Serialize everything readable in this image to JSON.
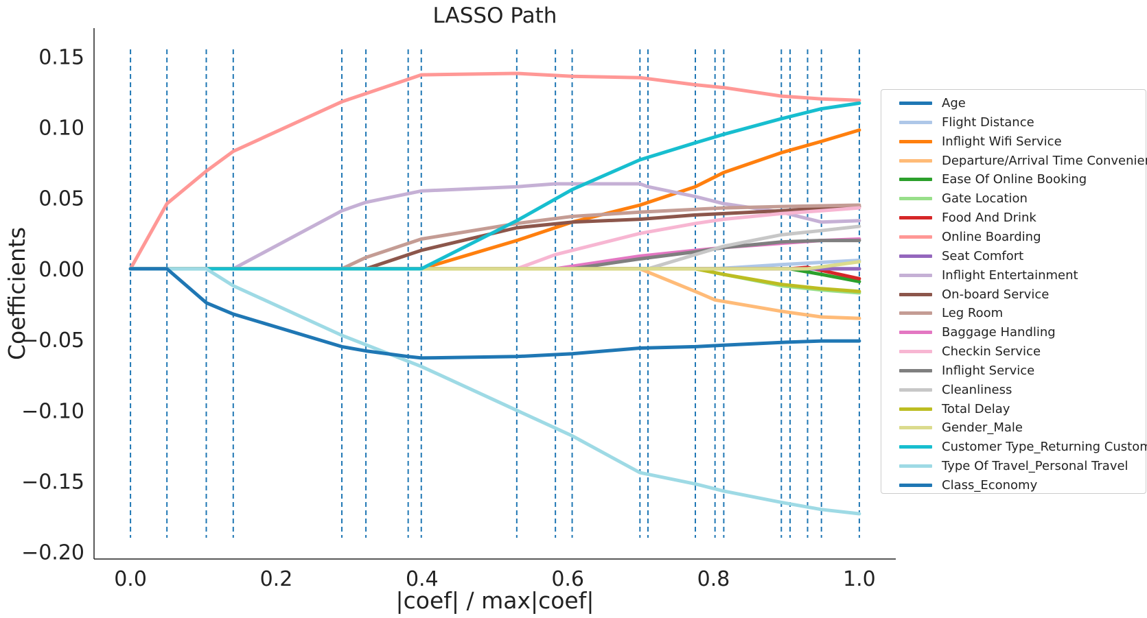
{
  "chart_data": {
    "type": "line",
    "title": "LASSO Path",
    "xlabel": "|coef| / max|coef|",
    "ylabel": "Coefficients",
    "xlim": [
      -0.05,
      1.05
    ],
    "ylim": [
      -0.205,
      0.17
    ],
    "xticks": [
      0.0,
      0.2,
      0.4,
      0.6,
      0.8,
      1.0
    ],
    "xtick_labels": [
      "0.0",
      "0.2",
      "0.4",
      "0.6",
      "0.8",
      "1.0"
    ],
    "yticks": [
      0.15,
      0.1,
      0.05,
      0.0,
      -0.05,
      -0.1,
      -0.15,
      -0.2
    ],
    "ytick_labels": [
      "0.15",
      "0.10",
      "0.05",
      "0.00",
      "−0.05",
      "−0.10",
      "−0.15",
      "−0.20"
    ],
    "grid": false,
    "legend_placement": "right outside",
    "knots": [
      0.0,
      0.05,
      0.104,
      0.141,
      0.29,
      0.323,
      0.381,
      0.399,
      0.53,
      0.583,
      0.606,
      0.699,
      0.71,
      0.775,
      0.802,
      0.814,
      0.893,
      0.905,
      0.929,
      0.948,
      1.0
    ],
    "knot_line_style": "dashed",
    "knot_line_range": [
      -0.19,
      0.155
    ],
    "knot_line_color": "#1f77b4",
    "series": [
      {
        "name": "Age",
        "color": "#1f77b4",
        "x": [
          0,
          1
        ],
        "y": [
          0,
          0
        ]
      },
      {
        "name": "Flight Distance",
        "color": "#aec7e8",
        "x": [
          0,
          0.802,
          0.893,
          1.0
        ],
        "y": [
          0,
          0,
          0.003,
          0.006
        ]
      },
      {
        "name": "Inflight Wifi Service",
        "color": "#ff7f0e",
        "x": [
          0,
          0.399,
          0.53,
          0.606,
          0.699,
          0.775,
          0.814,
          0.893,
          0.948,
          1.0
        ],
        "y": [
          0,
          0,
          0.02,
          0.033,
          0.045,
          0.058,
          0.068,
          0.082,
          0.09,
          0.098
        ]
      },
      {
        "name": "Departure/Arrival Time Convenience",
        "color": "#ffbb78",
        "x": [
          0,
          0.699,
          0.775,
          0.802,
          0.893,
          0.948,
          1.0
        ],
        "y": [
          0,
          0,
          -0.016,
          -0.022,
          -0.03,
          -0.034,
          -0.035
        ]
      },
      {
        "name": "Ease Of Online Booking",
        "color": "#2ca02c",
        "x": [
          0,
          0.905,
          0.948,
          1.0
        ],
        "y": [
          0,
          0,
          -0.004,
          -0.009
        ]
      },
      {
        "name": "Gate Location",
        "color": "#98df8a",
        "x": [
          0,
          0.775,
          0.893,
          0.948,
          1.0
        ],
        "y": [
          0,
          0,
          -0.012,
          -0.015,
          -0.017
        ]
      },
      {
        "name": "Food And Drink",
        "color": "#d62728",
        "x": [
          0,
          0.905,
          0.929,
          1.0
        ],
        "y": [
          0,
          0,
          0.001,
          -0.007
        ]
      },
      {
        "name": "Online Boarding",
        "color": "#ff9896",
        "x": [
          0,
          0.05,
          0.104,
          0.141,
          0.29,
          0.399,
          0.53,
          0.606,
          0.699,
          0.775,
          0.814,
          0.893,
          0.948,
          1.0
        ],
        "y": [
          0,
          0.046,
          0.069,
          0.083,
          0.118,
          0.137,
          0.138,
          0.136,
          0.135,
          0.13,
          0.128,
          0.122,
          0.12,
          0.119
        ]
      },
      {
        "name": "Seat Comfort",
        "color": "#9467bd",
        "x": [
          0,
          1
        ],
        "y": [
          0,
          0
        ]
      },
      {
        "name": "Inflight Entertainment",
        "color": "#c5b0d5",
        "x": [
          0,
          0.141,
          0.29,
          0.323,
          0.399,
          0.53,
          0.583,
          0.606,
          0.699,
          0.71,
          0.775,
          0.814,
          0.893,
          0.948,
          1.0
        ],
        "y": [
          0,
          0,
          0.041,
          0.047,
          0.055,
          0.058,
          0.06,
          0.06,
          0.06,
          0.058,
          0.051,
          0.046,
          0.04,
          0.033,
          0.034
        ]
      },
      {
        "name": "On-board Service",
        "color": "#8c564b",
        "x": [
          0,
          0.323,
          0.399,
          0.53,
          0.606,
          0.699,
          0.775,
          0.814,
          0.893,
          0.948,
          1.0
        ],
        "y": [
          0,
          0,
          0.013,
          0.029,
          0.033,
          0.035,
          0.038,
          0.039,
          0.041,
          0.043,
          0.044
        ]
      },
      {
        "name": "Leg Room",
        "color": "#c49c94",
        "x": [
          0,
          0.29,
          0.323,
          0.399,
          0.53,
          0.606,
          0.699,
          0.775,
          0.814,
          0.893,
          1.0
        ],
        "y": [
          0,
          0,
          0.008,
          0.021,
          0.032,
          0.037,
          0.04,
          0.042,
          0.043,
          0.044,
          0.045
        ]
      },
      {
        "name": "Baggage Handling",
        "color": "#e377c2",
        "x": [
          0,
          0.583,
          0.699,
          0.775,
          0.814,
          0.893,
          0.948,
          1.0
        ],
        "y": [
          0,
          0,
          0.009,
          0.013,
          0.015,
          0.018,
          0.02,
          0.021
        ]
      },
      {
        "name": "Checkin Service",
        "color": "#f7b6d2",
        "x": [
          0,
          0.53,
          0.583,
          0.699,
          0.775,
          0.814,
          0.893,
          0.948,
          1.0
        ],
        "y": [
          0,
          0,
          0.01,
          0.025,
          0.032,
          0.035,
          0.039,
          0.041,
          0.043
        ]
      },
      {
        "name": "Inflight Service",
        "color": "#7f7f7f",
        "x": [
          0,
          0.606,
          0.699,
          0.775,
          0.814,
          0.893,
          0.948,
          1.0
        ],
        "y": [
          0,
          0,
          0.007,
          0.012,
          0.015,
          0.019,
          0.02,
          0.02
        ]
      },
      {
        "name": "Cleanliness",
        "color": "#c7c7c7",
        "x": [
          0,
          0.71,
          0.775,
          0.814,
          0.893,
          0.948,
          1.0
        ],
        "y": [
          0,
          0,
          0.01,
          0.016,
          0.024,
          0.027,
          0.03
        ]
      },
      {
        "name": "Total Delay",
        "color": "#bcbd22",
        "x": [
          0,
          0.775,
          0.814,
          0.893,
          0.948,
          1.0
        ],
        "y": [
          0,
          0,
          -0.004,
          -0.011,
          -0.014,
          -0.016
        ]
      },
      {
        "name": "Gender_Male",
        "color": "#dbdb8d",
        "x": [
          0,
          0.929,
          1.0
        ],
        "y": [
          0,
          0,
          0.005
        ]
      },
      {
        "name": "Customer Type_Returning Customer",
        "color": "#17becf",
        "x": [
          0,
          0.399,
          0.53,
          0.606,
          0.699,
          0.775,
          0.814,
          0.893,
          0.948,
          1.0
        ],
        "y": [
          0,
          0,
          0.034,
          0.056,
          0.077,
          0.089,
          0.095,
          0.106,
          0.113,
          0.117
        ]
      },
      {
        "name": "Type Of Travel_Personal Travel",
        "color": "#9edae5",
        "x": [
          0,
          0.104,
          0.141,
          0.29,
          0.399,
          0.53,
          0.606,
          0.699,
          0.775,
          0.814,
          0.893,
          0.948,
          1.0
        ],
        "y": [
          0,
          0,
          -0.012,
          -0.047,
          -0.069,
          -0.1,
          -0.118,
          -0.144,
          -0.152,
          -0.157,
          -0.165,
          -0.17,
          -0.173
        ]
      },
      {
        "name": "Class_Economy",
        "color": "#1f77b4",
        "x": [
          0,
          0.05,
          0.104,
          0.141,
          0.29,
          0.323,
          0.381,
          0.399,
          0.53,
          0.606,
          0.699,
          0.775,
          0.814,
          0.893,
          0.948,
          1.0
        ],
        "y": [
          0,
          0,
          -0.024,
          -0.032,
          -0.055,
          -0.058,
          -0.062,
          -0.063,
          -0.062,
          -0.06,
          -0.056,
          -0.055,
          -0.054,
          -0.052,
          -0.051,
          -0.051
        ]
      }
    ]
  }
}
